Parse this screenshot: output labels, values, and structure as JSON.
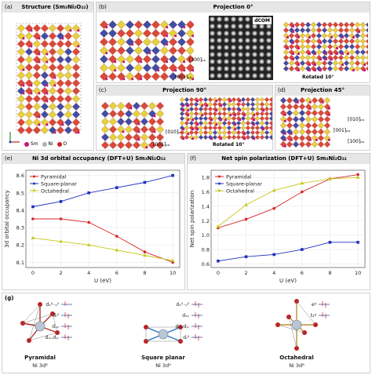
{
  "panels": {
    "a": {
      "letter": "(a)",
      "title": "Structure (Sm₃Ni₂O₂₂)",
      "legend": [
        {
          "sym": "Sm",
          "color": "#c2187a"
        },
        {
          "sym": "Ni",
          "color": "#b0b0b0"
        },
        {
          "sym": "O",
          "color": "#d42020"
        }
      ]
    },
    "b": {
      "letter": "(b)",
      "title": "Projection 0°",
      "stem_label": "dCOM",
      "rotated": "Rotated 10°",
      "axis_up": "[100]ₚₒ",
      "axis_left": "[001]ₚₒ"
    },
    "c": {
      "letter": "(c)",
      "title": "Projection 90°",
      "rotated": "Rotated 10°",
      "axis_up": "[010]ₚₒ",
      "axis_left": "[001]ₚₒ"
    },
    "d": {
      "letter": "(d)",
      "title": "Projection 45°",
      "axis_up": "[010]ₚₒ",
      "axis_left": "[001]ₚₒ",
      "axis_down": "[100]ₚₒ"
    },
    "g": {
      "letter": "(g)"
    }
  },
  "chart_data": [
    {
      "panel": "(e)",
      "type": "line",
      "title": "Ni 3d orbital occupancy (DFT+U) Sm₃Ni₂O₂₂",
      "xlabel": "U (eV)",
      "ylabel": "3d orbital occupancy",
      "xlim": [
        -0.5,
        10.5
      ],
      "ylim": [
        8.07,
        8.63
      ],
      "xticks": [
        0,
        2,
        4,
        6,
        8,
        10
      ],
      "yticks": [
        8.1,
        8.2,
        8.3,
        8.4,
        8.5,
        8.6
      ],
      "legend_position": "upper-left",
      "series": [
        {
          "name": "Pyramidal",
          "color": "#d62728",
          "x": [
            0,
            2,
            4,
            6,
            8,
            10
          ],
          "y": [
            8.35,
            8.35,
            8.33,
            8.25,
            8.16,
            8.1
          ]
        },
        {
          "name": "Square-planar",
          "color": "#1f2fbf",
          "x": [
            0,
            2,
            4,
            6,
            8,
            10
          ],
          "y": [
            8.42,
            8.45,
            8.5,
            8.53,
            8.56,
            8.6
          ]
        },
        {
          "name": "Octahedral",
          "color": "#c8c81e",
          "x": [
            0,
            2,
            4,
            6,
            8,
            10
          ],
          "y": [
            8.24,
            8.22,
            8.2,
            8.17,
            8.14,
            8.11
          ]
        }
      ]
    },
    {
      "panel": "(f)",
      "type": "line",
      "title": "Net spin polarization (DFT+U) Sm₃Ni₂O₂₂",
      "xlabel": "U (eV)",
      "ylabel": "Net spin polarization",
      "xlim": [
        -0.5,
        10.5
      ],
      "ylim": [
        0.55,
        1.9
      ],
      "xticks": [
        0,
        2,
        4,
        6,
        8,
        10
      ],
      "yticks": [
        0.6,
        0.8,
        1.0,
        1.2,
        1.4,
        1.6,
        1.8
      ],
      "legend_position": "upper-left",
      "series": [
        {
          "name": "Pyramidal",
          "color": "#d62728",
          "x": [
            0,
            2,
            4,
            6,
            8,
            10
          ],
          "y": [
            1.1,
            1.22,
            1.37,
            1.6,
            1.78,
            1.84
          ]
        },
        {
          "name": "Square-planar",
          "color": "#1f2fbf",
          "x": [
            0,
            2,
            4,
            6,
            8,
            10
          ],
          "y": [
            0.64,
            0.7,
            0.73,
            0.8,
            0.9,
            0.9
          ]
        },
        {
          "name": "Octahedral",
          "color": "#c8c81e",
          "x": [
            0,
            2,
            4,
            6,
            8,
            10
          ],
          "y": [
            1.12,
            1.42,
            1.62,
            1.72,
            1.78,
            1.8
          ]
        }
      ]
    }
  ],
  "orbitals": [
    {
      "name": "Pyramidal",
      "config": "Ni 3d⁸",
      "levels": [
        "dₓ²₋ᵧ²",
        "dᵣ²",
        "dₓᵧ",
        "dₓᵣ,dᵧᵣ"
      ]
    },
    {
      "name": "Square planar",
      "config": "Ni 3d⁹",
      "levels": [
        "dₓ²₋ᵧ²",
        "dₓᵧ",
        "dₓᵣ,dᵧᵣ",
        "dᵣ²"
      ]
    },
    {
      "name": "Octahedral",
      "config": "Ni 3d⁸",
      "levels": [
        "eᵍ",
        "t₂ᵍ"
      ]
    }
  ]
}
